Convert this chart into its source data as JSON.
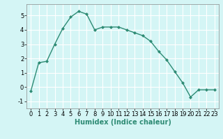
{
  "x": [
    0,
    1,
    2,
    3,
    4,
    5,
    6,
    7,
    8,
    9,
    10,
    11,
    12,
    13,
    14,
    15,
    16,
    17,
    18,
    19,
    20,
    21,
    22,
    23
  ],
  "y": [
    -0.3,
    1.7,
    1.8,
    3.0,
    4.1,
    4.9,
    5.3,
    5.1,
    4.0,
    4.2,
    4.2,
    4.2,
    4.0,
    3.8,
    3.6,
    3.2,
    2.5,
    1.9,
    1.1,
    0.3,
    -0.7,
    -0.2,
    -0.2,
    -0.2
  ],
  "line_color": "#2e8b74",
  "marker": "D",
  "markersize": 2.0,
  "linewidth": 1.0,
  "background_color": "#d4f5f5",
  "grid_color": "#ffffff",
  "xlabel": "Humidex (Indice chaleur)",
  "xlabel_fontsize": 7,
  "tick_fontsize": 6,
  "xlim": [
    -0.5,
    23.5
  ],
  "ylim": [
    -1.5,
    5.8
  ],
  "yticks": [
    -1,
    0,
    1,
    2,
    3,
    4,
    5
  ],
  "xticks": [
    0,
    1,
    2,
    3,
    4,
    5,
    6,
    7,
    8,
    9,
    10,
    11,
    12,
    13,
    14,
    15,
    16,
    17,
    18,
    19,
    20,
    21,
    22,
    23
  ]
}
